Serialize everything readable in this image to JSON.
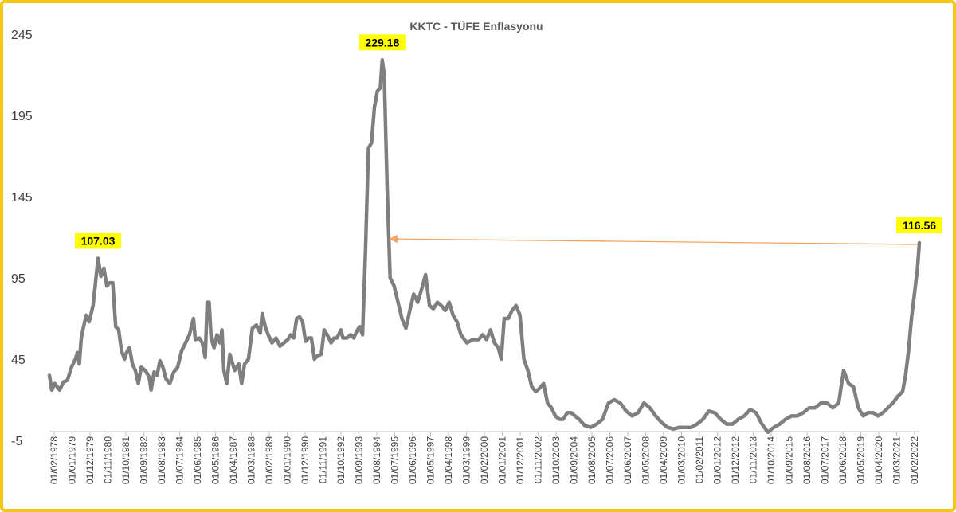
{
  "chart_data": {
    "type": "line",
    "title": "KKTC - TÜFE Enflasyonu",
    "xlabel": "",
    "ylabel": "",
    "ylim": [
      -5,
      245
    ],
    "yticks": [
      "245",
      "195",
      "145",
      "95",
      "45",
      "-5"
    ],
    "grid": false,
    "line_color": "#7f7f7f",
    "highlight_color": "#ffff00",
    "arrow_color": "#f4a460",
    "xticks": [
      "01/02/1978",
      "01/01/1979",
      "01/12/1979",
      "01/11/1980",
      "01/10/1981",
      "01/09/1982",
      "01/08/1983",
      "01/07/1984",
      "01/06/1985",
      "01/05/1986",
      "01/04/1987",
      "01/03/1988",
      "01/02/1989",
      "01/01/1990",
      "01/12/1990",
      "01/11/1991",
      "01/10/1992",
      "01/09/1993",
      "01/08/1994",
      "01/07/1995",
      "01/06/1996",
      "01/05/1997",
      "01/04/1998",
      "01/03/1999",
      "01/02/2000",
      "01/01/2001",
      "01/12/2001",
      "01/11/2002",
      "01/10/2003",
      "01/09/2004",
      "01/08/2005",
      "01/07/2006",
      "01/06/2007",
      "01/05/2008",
      "01/04/2009",
      "01/03/2010",
      "01/02/2011",
      "01/01/2012",
      "01/12/2012",
      "01/11/2013",
      "01/10/2014",
      "01/09/2015",
      "01/08/2016",
      "01/07/2017",
      "01/06/2018",
      "01/05/2019",
      "01/04/2020",
      "01/03/2021",
      "01/02/2022"
    ],
    "series": [
      {
        "name": "",
        "points": [
          [
            1978.08,
            35
          ],
          [
            1978.2,
            26
          ],
          [
            1978.35,
            30
          ],
          [
            1978.6,
            26
          ],
          [
            1978.8,
            31
          ],
          [
            1979.0,
            32
          ],
          [
            1979.2,
            40
          ],
          [
            1979.4,
            45
          ],
          [
            1979.5,
            49
          ],
          [
            1979.6,
            42
          ],
          [
            1979.7,
            58
          ],
          [
            1979.8,
            64
          ],
          [
            1979.95,
            72
          ],
          [
            1980.1,
            68
          ],
          [
            1980.3,
            78
          ],
          [
            1980.45,
            95
          ],
          [
            1980.55,
            107.03
          ],
          [
            1980.7,
            96
          ],
          [
            1980.85,
            101
          ],
          [
            1981.0,
            90
          ],
          [
            1981.15,
            92
          ],
          [
            1981.3,
            92
          ],
          [
            1981.45,
            65
          ],
          [
            1981.6,
            63
          ],
          [
            1981.75,
            50
          ],
          [
            1981.9,
            45
          ],
          [
            1982.0,
            49
          ],
          [
            1982.15,
            52
          ],
          [
            1982.3,
            42
          ],
          [
            1982.45,
            38
          ],
          [
            1982.6,
            30
          ],
          [
            1982.75,
            40
          ],
          [
            1982.95,
            38
          ],
          [
            1983.15,
            34
          ],
          [
            1983.25,
            26
          ],
          [
            1983.4,
            37
          ],
          [
            1983.55,
            35
          ],
          [
            1983.7,
            44
          ],
          [
            1983.85,
            40
          ],
          [
            1984.0,
            33
          ],
          [
            1984.2,
            30
          ],
          [
            1984.4,
            37
          ],
          [
            1984.6,
            40
          ],
          [
            1984.8,
            50
          ],
          [
            1985.0,
            55
          ],
          [
            1985.2,
            60
          ],
          [
            1985.4,
            70
          ],
          [
            1985.5,
            57
          ],
          [
            1985.7,
            58
          ],
          [
            1985.85,
            55
          ],
          [
            1986.0,
            46
          ],
          [
            1986.1,
            80
          ],
          [
            1986.2,
            80
          ],
          [
            1986.3,
            58
          ],
          [
            1986.45,
            52
          ],
          [
            1986.6,
            60
          ],
          [
            1986.75,
            55
          ],
          [
            1986.85,
            63
          ],
          [
            1986.95,
            38
          ],
          [
            1987.1,
            30
          ],
          [
            1987.25,
            48
          ],
          [
            1987.5,
            38
          ],
          [
            1987.7,
            42
          ],
          [
            1987.85,
            30
          ],
          [
            1988.0,
            42
          ],
          [
            1988.2,
            45
          ],
          [
            1988.4,
            64
          ],
          [
            1988.6,
            66
          ],
          [
            1988.8,
            61
          ],
          [
            1988.9,
            73
          ],
          [
            1989.05,
            65
          ],
          [
            1989.2,
            60
          ],
          [
            1989.4,
            55
          ],
          [
            1989.6,
            58
          ],
          [
            1989.8,
            53
          ],
          [
            1990.0,
            55
          ],
          [
            1990.2,
            57
          ],
          [
            1990.35,
            60
          ],
          [
            1990.5,
            58
          ],
          [
            1990.65,
            70
          ],
          [
            1990.8,
            71
          ],
          [
            1990.95,
            68
          ],
          [
            1991.1,
            56
          ],
          [
            1991.25,
            58
          ],
          [
            1991.4,
            58
          ],
          [
            1991.55,
            45
          ],
          [
            1991.7,
            47
          ],
          [
            1991.9,
            48
          ],
          [
            1992.05,
            63
          ],
          [
            1992.2,
            60
          ],
          [
            1992.4,
            55
          ],
          [
            1992.55,
            58
          ],
          [
            1992.7,
            58
          ],
          [
            1992.9,
            63
          ],
          [
            1993.0,
            58
          ],
          [
            1993.2,
            58
          ],
          [
            1993.4,
            60
          ],
          [
            1993.55,
            58
          ],
          [
            1993.7,
            62
          ],
          [
            1993.85,
            65
          ],
          [
            1994.0,
            60
          ],
          [
            1994.15,
            112
          ],
          [
            1994.3,
            175
          ],
          [
            1994.45,
            178
          ],
          [
            1994.6,
            200
          ],
          [
            1994.75,
            210
          ],
          [
            1994.9,
            212
          ],
          [
            1995.0,
            229.18
          ],
          [
            1995.1,
            220
          ],
          [
            1995.25,
            150
          ],
          [
            1995.4,
            95
          ],
          [
            1995.6,
            90
          ],
          [
            1995.8,
            80
          ],
          [
            1996.0,
            70
          ],
          [
            1996.2,
            64
          ],
          [
            1996.4,
            75
          ],
          [
            1996.6,
            85
          ],
          [
            1996.8,
            80
          ],
          [
            1997.0,
            88
          ],
          [
            1997.2,
            97
          ],
          [
            1997.4,
            78
          ],
          [
            1997.6,
            76
          ],
          [
            1997.8,
            80
          ],
          [
            1998.0,
            78
          ],
          [
            1998.2,
            75
          ],
          [
            1998.4,
            80
          ],
          [
            1998.6,
            72
          ],
          [
            1998.8,
            68
          ],
          [
            1999.0,
            60
          ],
          [
            1999.3,
            55
          ],
          [
            1999.6,
            57
          ],
          [
            1999.9,
            57
          ],
          [
            2000.1,
            60
          ],
          [
            2000.3,
            57
          ],
          [
            2000.5,
            63
          ],
          [
            2000.7,
            55
          ],
          [
            2000.9,
            52
          ],
          [
            2001.05,
            45
          ],
          [
            2001.2,
            70
          ],
          [
            2001.4,
            70
          ],
          [
            2001.6,
            75
          ],
          [
            2001.8,
            78
          ],
          [
            2002.0,
            72
          ],
          [
            2002.2,
            45
          ],
          [
            2002.4,
            38
          ],
          [
            2002.6,
            28
          ],
          [
            2002.8,
            25
          ],
          [
            2003.0,
            27
          ],
          [
            2003.2,
            30
          ],
          [
            2003.4,
            18
          ],
          [
            2003.6,
            15
          ],
          [
            2003.8,
            10
          ],
          [
            2004.0,
            8
          ],
          [
            2004.2,
            8
          ],
          [
            2004.4,
            12
          ],
          [
            2004.6,
            12
          ],
          [
            2004.8,
            10
          ],
          [
            2005.0,
            8
          ],
          [
            2005.3,
            4
          ],
          [
            2005.6,
            3
          ],
          [
            2005.9,
            5
          ],
          [
            2006.2,
            8
          ],
          [
            2006.5,
            18
          ],
          [
            2006.8,
            20
          ],
          [
            2007.1,
            18
          ],
          [
            2007.4,
            13
          ],
          [
            2007.7,
            10
          ],
          [
            2008.0,
            12
          ],
          [
            2008.3,
            18
          ],
          [
            2008.6,
            15
          ],
          [
            2008.9,
            10
          ],
          [
            2009.2,
            6
          ],
          [
            2009.5,
            3
          ],
          [
            2009.8,
            2
          ],
          [
            2010.1,
            3
          ],
          [
            2010.4,
            3
          ],
          [
            2010.7,
            3
          ],
          [
            2011.0,
            5
          ],
          [
            2011.3,
            8
          ],
          [
            2011.6,
            13
          ],
          [
            2011.9,
            12
          ],
          [
            2012.2,
            8
          ],
          [
            2012.5,
            5
          ],
          [
            2012.8,
            5
          ],
          [
            2013.1,
            8
          ],
          [
            2013.4,
            10
          ],
          [
            2013.7,
            14
          ],
          [
            2014.0,
            12
          ],
          [
            2014.3,
            5
          ],
          [
            2014.6,
            0
          ],
          [
            2014.9,
            3
          ],
          [
            2015.2,
            5
          ],
          [
            2015.5,
            8
          ],
          [
            2015.8,
            10
          ],
          [
            2016.1,
            10
          ],
          [
            2016.4,
            12
          ],
          [
            2016.7,
            15
          ],
          [
            2017.0,
            15
          ],
          [
            2017.3,
            18
          ],
          [
            2017.6,
            18
          ],
          [
            2017.9,
            15
          ],
          [
            2018.2,
            18
          ],
          [
            2018.45,
            38
          ],
          [
            2018.7,
            30
          ],
          [
            2018.95,
            28
          ],
          [
            2019.2,
            15
          ],
          [
            2019.45,
            10
          ],
          [
            2019.7,
            12
          ],
          [
            2019.95,
            12
          ],
          [
            2020.2,
            10
          ],
          [
            2020.45,
            12
          ],
          [
            2020.7,
            15
          ],
          [
            2020.95,
            18
          ],
          [
            2021.2,
            22
          ],
          [
            2021.45,
            25
          ],
          [
            2021.6,
            35
          ],
          [
            2021.75,
            50
          ],
          [
            2021.9,
            70
          ],
          [
            2022.05,
            85
          ],
          [
            2022.2,
            100
          ],
          [
            2022.3,
            116.56
          ]
        ]
      }
    ],
    "annotations": [
      {
        "label": "107.03",
        "x": 1980.55,
        "y": 107.03
      },
      {
        "label": "229.18",
        "x": 1995.0,
        "y": 229.18
      },
      {
        "label": "116.56",
        "x": 2022.3,
        "y": 116.56
      }
    ],
    "arrow": {
      "from": [
        2022.3,
        116.56
      ],
      "to": [
        1995.4,
        119
      ]
    }
  }
}
